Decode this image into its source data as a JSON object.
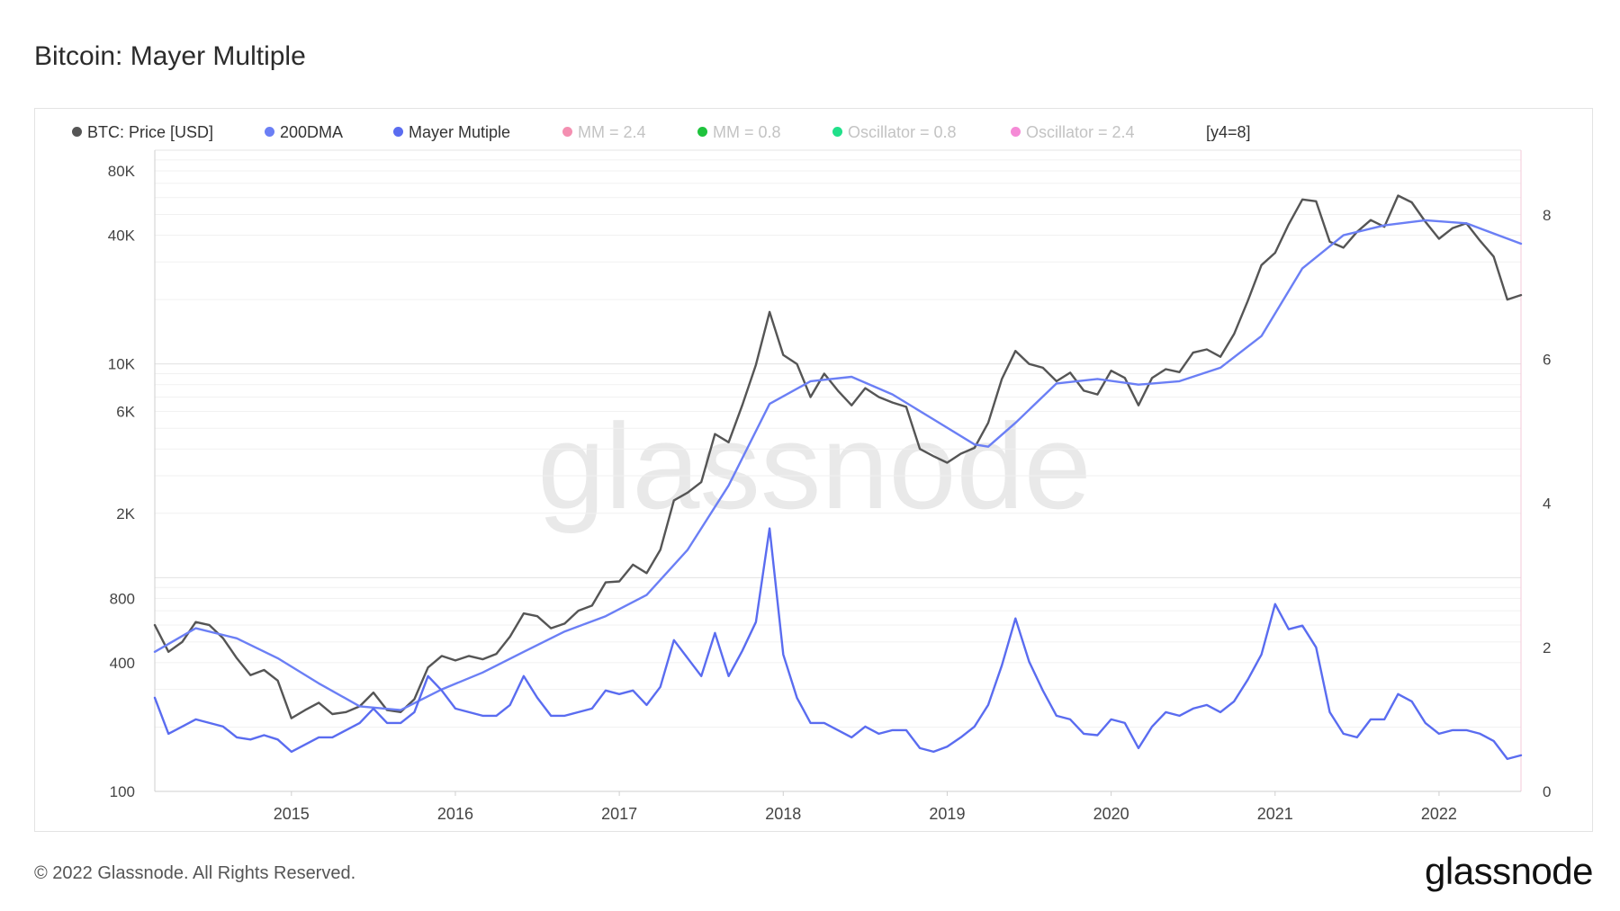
{
  "title": "Bitcoin: Mayer Multiple",
  "footer": "© 2022 Glassnode. All Rights Reserved.",
  "brand": "glassnode",
  "watermark": "glassnode",
  "legend": [
    {
      "label": "BTC: Price [USD]",
      "color": "#555555",
      "dim": false
    },
    {
      "label": "200DMA",
      "color": "#6b7ff5",
      "dim": false
    },
    {
      "label": "Mayer Mutiple",
      "color": "#5a6cf0",
      "dim": false
    },
    {
      "label": "MM = 2.4",
      "color": "#f48fb1",
      "dim": true
    },
    {
      "label": "MM = 0.8",
      "color": "#1fc33d",
      "dim": true
    },
    {
      "label": "Oscillator = 0.8",
      "color": "#21e08a",
      "dim": true
    },
    {
      "label": "Oscillator = 2.4",
      "color": "#f58ad6",
      "dim": true
    },
    {
      "label": "[y4=8]",
      "color": "",
      "dim": false
    }
  ],
  "chart_data": {
    "type": "line",
    "y_scale": "log",
    "ylim": [
      100,
      100000
    ],
    "y2lim": [
      0,
      8.9
    ],
    "xlim": [
      "2014-03",
      "2022-07"
    ],
    "y_ticks": [
      {
        "v": 100,
        "label": "100"
      },
      {
        "v": 400,
        "label": "400"
      },
      {
        "v": 800,
        "label": "800"
      },
      {
        "v": 2000,
        "label": "2K"
      },
      {
        "v": 6000,
        "label": "6K"
      },
      {
        "v": 10000,
        "label": "10K"
      },
      {
        "v": 40000,
        "label": "40K"
      },
      {
        "v": 80000,
        "label": "80K"
      }
    ],
    "y2_ticks": [
      {
        "v": 0,
        "label": "0"
      },
      {
        "v": 2,
        "label": "2"
      },
      {
        "v": 4,
        "label": "4"
      },
      {
        "v": 6,
        "label": "6"
      },
      {
        "v": 8,
        "label": "8"
      }
    ],
    "x_ticks": [
      "2015",
      "2016",
      "2017",
      "2018",
      "2019",
      "2020",
      "2021",
      "2022"
    ],
    "series": [
      {
        "name": "BTC: Price [USD]",
        "color": "#555555",
        "points": [
          [
            "2014-03",
            600
          ],
          [
            "2014-04",
            450
          ],
          [
            "2014-05",
            500
          ],
          [
            "2014-06",
            620
          ],
          [
            "2014-07",
            600
          ],
          [
            "2014-08",
            520
          ],
          [
            "2014-09",
            420
          ],
          [
            "2014-10",
            350
          ],
          [
            "2014-11",
            370
          ],
          [
            "2014-12",
            330
          ],
          [
            "2015-01",
            220
          ],
          [
            "2015-02",
            240
          ],
          [
            "2015-03",
            260
          ],
          [
            "2015-04",
            230
          ],
          [
            "2015-05",
            235
          ],
          [
            "2015-06",
            250
          ],
          [
            "2015-07",
            290
          ],
          [
            "2015-08",
            240
          ],
          [
            "2015-09",
            235
          ],
          [
            "2015-10",
            270
          ],
          [
            "2015-11",
            380
          ],
          [
            "2015-12",
            430
          ],
          [
            "2016-01",
            410
          ],
          [
            "2016-02",
            430
          ],
          [
            "2016-03",
            415
          ],
          [
            "2016-04",
            440
          ],
          [
            "2016-05",
            530
          ],
          [
            "2016-06",
            680
          ],
          [
            "2016-07",
            660
          ],
          [
            "2016-08",
            580
          ],
          [
            "2016-09",
            610
          ],
          [
            "2016-10",
            700
          ],
          [
            "2016-11",
            740
          ],
          [
            "2016-12",
            950
          ],
          [
            "2017-01",
            960
          ],
          [
            "2017-02",
            1150
          ],
          [
            "2017-03",
            1050
          ],
          [
            "2017-04",
            1350
          ],
          [
            "2017-05",
            2300
          ],
          [
            "2017-06",
            2500
          ],
          [
            "2017-07",
            2800
          ],
          [
            "2017-08",
            4700
          ],
          [
            "2017-09",
            4300
          ],
          [
            "2017-10",
            6400
          ],
          [
            "2017-11",
            9900
          ],
          [
            "2017-12",
            17500
          ],
          [
            "2018-01",
            11000
          ],
          [
            "2018-02",
            10000
          ],
          [
            "2018-03",
            7000
          ],
          [
            "2018-04",
            9000
          ],
          [
            "2018-05",
            7500
          ],
          [
            "2018-06",
            6400
          ],
          [
            "2018-07",
            7700
          ],
          [
            "2018-08",
            7000
          ],
          [
            "2018-09",
            6600
          ],
          [
            "2018-10",
            6300
          ],
          [
            "2018-11",
            4000
          ],
          [
            "2018-12",
            3700
          ],
          [
            "2019-01",
            3450
          ],
          [
            "2019-02",
            3800
          ],
          [
            "2019-03",
            4050
          ],
          [
            "2019-04",
            5300
          ],
          [
            "2019-05",
            8500
          ],
          [
            "2019-06",
            11500
          ],
          [
            "2019-07",
            10000
          ],
          [
            "2019-08",
            9600
          ],
          [
            "2019-09",
            8300
          ],
          [
            "2019-10",
            9100
          ],
          [
            "2019-11",
            7500
          ],
          [
            "2019-12",
            7200
          ],
          [
            "2020-01",
            9300
          ],
          [
            "2020-02",
            8600
          ],
          [
            "2020-03",
            6400
          ],
          [
            "2020-04",
            8600
          ],
          [
            "2020-05",
            9450
          ],
          [
            "2020-06",
            9150
          ],
          [
            "2020-07",
            11300
          ],
          [
            "2020-08",
            11700
          ],
          [
            "2020-09",
            10800
          ],
          [
            "2020-10",
            13800
          ],
          [
            "2020-11",
            19700
          ],
          [
            "2020-12",
            29000
          ],
          [
            "2021-01",
            33100
          ],
          [
            "2021-02",
            45000
          ],
          [
            "2021-03",
            58800
          ],
          [
            "2021-04",
            57700
          ],
          [
            "2021-05",
            37300
          ],
          [
            "2021-06",
            35000
          ],
          [
            "2021-07",
            41500
          ],
          [
            "2021-08",
            47100
          ],
          [
            "2021-09",
            43800
          ],
          [
            "2021-10",
            61300
          ],
          [
            "2021-11",
            57000
          ],
          [
            "2021-12",
            46300
          ],
          [
            "2022-01",
            38500
          ],
          [
            "2022-02",
            43200
          ],
          [
            "2022-03",
            45500
          ],
          [
            "2022-04",
            37700
          ],
          [
            "2022-05",
            31800
          ],
          [
            "2022-06",
            20000
          ],
          [
            "2022-07",
            21000
          ]
        ]
      },
      {
        "name": "200DMA",
        "color": "#6b7ff5",
        "points": [
          [
            "2014-03",
            450
          ],
          [
            "2014-06",
            580
          ],
          [
            "2014-09",
            520
          ],
          [
            "2014-12",
            420
          ],
          [
            "2015-03",
            320
          ],
          [
            "2015-06",
            250
          ],
          [
            "2015-09",
            240
          ],
          [
            "2015-12",
            300
          ],
          [
            "2016-03",
            360
          ],
          [
            "2016-06",
            450
          ],
          [
            "2016-09",
            560
          ],
          [
            "2016-12",
            660
          ],
          [
            "2017-03",
            830
          ],
          [
            "2017-06",
            1350
          ],
          [
            "2017-09",
            2700
          ],
          [
            "2017-12",
            6500
          ],
          [
            "2018-03",
            8300
          ],
          [
            "2018-06",
            8700
          ],
          [
            "2018-09",
            7200
          ],
          [
            "2018-12",
            5500
          ],
          [
            "2019-03",
            4200
          ],
          [
            "2019-04",
            4100
          ],
          [
            "2019-06",
            5300
          ],
          [
            "2019-09",
            8100
          ],
          [
            "2019-12",
            8500
          ],
          [
            "2020-03",
            8000
          ],
          [
            "2020-06",
            8300
          ],
          [
            "2020-09",
            9600
          ],
          [
            "2020-12",
            13500
          ],
          [
            "2021-03",
            28000
          ],
          [
            "2021-06",
            40000
          ],
          [
            "2021-09",
            44500
          ],
          [
            "2021-12",
            47000
          ],
          [
            "2022-03",
            45500
          ],
          [
            "2022-07",
            36500
          ]
        ]
      },
      {
        "name": "Mayer Mutiple",
        "color": "#5a6cf0",
        "axis": "right",
        "points": [
          [
            "2014-03",
            1.3
          ],
          [
            "2014-04",
            0.8
          ],
          [
            "2014-05",
            0.9
          ],
          [
            "2014-06",
            1.0
          ],
          [
            "2014-07",
            0.95
          ],
          [
            "2014-08",
            0.9
          ],
          [
            "2014-09",
            0.75
          ],
          [
            "2014-10",
            0.72
          ],
          [
            "2014-11",
            0.78
          ],
          [
            "2014-12",
            0.72
          ],
          [
            "2015-01",
            0.55
          ],
          [
            "2015-02",
            0.65
          ],
          [
            "2015-03",
            0.75
          ],
          [
            "2015-04",
            0.75
          ],
          [
            "2015-05",
            0.85
          ],
          [
            "2015-06",
            0.95
          ],
          [
            "2015-07",
            1.15
          ],
          [
            "2015-08",
            0.95
          ],
          [
            "2015-09",
            0.95
          ],
          [
            "2015-10",
            1.1
          ],
          [
            "2015-11",
            1.6
          ],
          [
            "2015-12",
            1.4
          ],
          [
            "2016-01",
            1.15
          ],
          [
            "2016-02",
            1.1
          ],
          [
            "2016-03",
            1.05
          ],
          [
            "2016-04",
            1.05
          ],
          [
            "2016-05",
            1.2
          ],
          [
            "2016-06",
            1.6
          ],
          [
            "2016-07",
            1.3
          ],
          [
            "2016-08",
            1.05
          ],
          [
            "2016-09",
            1.05
          ],
          [
            "2016-10",
            1.1
          ],
          [
            "2016-11",
            1.15
          ],
          [
            "2016-12",
            1.4
          ],
          [
            "2017-01",
            1.35
          ],
          [
            "2017-02",
            1.4
          ],
          [
            "2017-03",
            1.2
          ],
          [
            "2017-04",
            1.45
          ],
          [
            "2017-05",
            2.1
          ],
          [
            "2017-06",
            1.85
          ],
          [
            "2017-07",
            1.6
          ],
          [
            "2017-08",
            2.2
          ],
          [
            "2017-09",
            1.6
          ],
          [
            "2017-10",
            1.95
          ],
          [
            "2017-11",
            2.35
          ],
          [
            "2017-12",
            3.65
          ],
          [
            "2018-01",
            1.9
          ],
          [
            "2018-02",
            1.3
          ],
          [
            "2018-03",
            0.95
          ],
          [
            "2018-04",
            0.95
          ],
          [
            "2018-05",
            0.85
          ],
          [
            "2018-06",
            0.75
          ],
          [
            "2018-07",
            0.9
          ],
          [
            "2018-08",
            0.8
          ],
          [
            "2018-09",
            0.85
          ],
          [
            "2018-10",
            0.85
          ],
          [
            "2018-11",
            0.6
          ],
          [
            "2018-12",
            0.55
          ],
          [
            "2019-01",
            0.62
          ],
          [
            "2019-02",
            0.75
          ],
          [
            "2019-03",
            0.9
          ],
          [
            "2019-04",
            1.2
          ],
          [
            "2019-05",
            1.75
          ],
          [
            "2019-06",
            2.4
          ],
          [
            "2019-07",
            1.8
          ],
          [
            "2019-08",
            1.4
          ],
          [
            "2019-09",
            1.05
          ],
          [
            "2019-10",
            1.0
          ],
          [
            "2019-11",
            0.8
          ],
          [
            "2019-12",
            0.78
          ],
          [
            "2020-01",
            1.0
          ],
          [
            "2020-02",
            0.95
          ],
          [
            "2020-03",
            0.6
          ],
          [
            "2020-04",
            0.9
          ],
          [
            "2020-05",
            1.1
          ],
          [
            "2020-06",
            1.05
          ],
          [
            "2020-07",
            1.15
          ],
          [
            "2020-08",
            1.2
          ],
          [
            "2020-09",
            1.1
          ],
          [
            "2020-10",
            1.25
          ],
          [
            "2020-11",
            1.55
          ],
          [
            "2020-12",
            1.9
          ],
          [
            "2021-01",
            2.6
          ],
          [
            "2021-02",
            2.25
          ],
          [
            "2021-03",
            2.3
          ],
          [
            "2021-04",
            2.0
          ],
          [
            "2021-05",
            1.1
          ],
          [
            "2021-06",
            0.8
          ],
          [
            "2021-07",
            0.75
          ],
          [
            "2021-08",
            1.0
          ],
          [
            "2021-09",
            1.0
          ],
          [
            "2021-10",
            1.35
          ],
          [
            "2021-11",
            1.25
          ],
          [
            "2021-12",
            0.95
          ],
          [
            "2022-01",
            0.8
          ],
          [
            "2022-02",
            0.85
          ],
          [
            "2022-03",
            0.85
          ],
          [
            "2022-04",
            0.8
          ],
          [
            "2022-05",
            0.7
          ],
          [
            "2022-06",
            0.45
          ],
          [
            "2022-07",
            0.5
          ]
        ]
      }
    ]
  }
}
